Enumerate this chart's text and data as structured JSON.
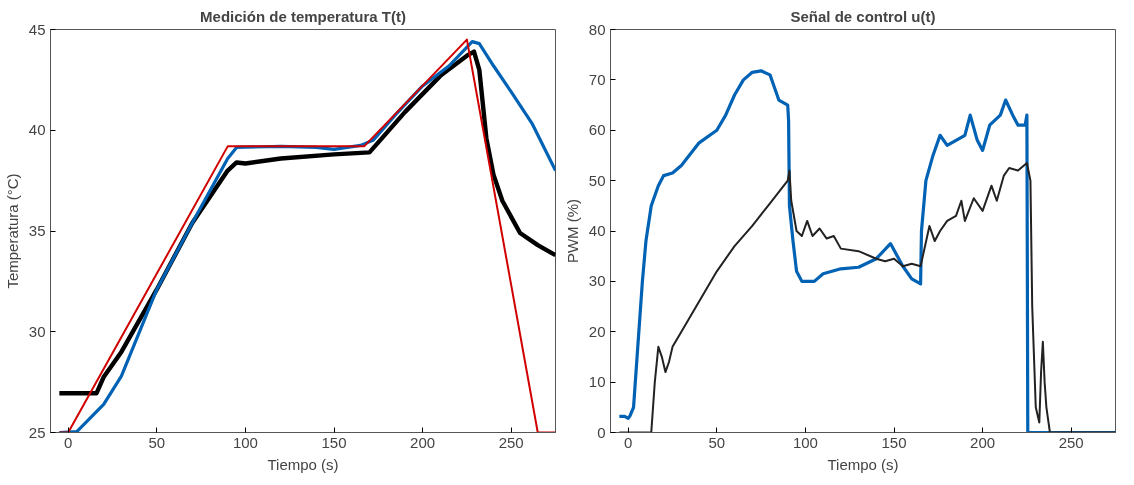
{
  "chart_data": [
    {
      "type": "line",
      "title": "Medición de temperatura T(t)",
      "xlabel": "Tiempo (s)",
      "ylabel": "Temperatura (°C)",
      "xlim": [
        -10,
        275
      ],
      "ylim": [
        25,
        45
      ],
      "xticks": [
        0,
        50,
        100,
        150,
        200,
        250
      ],
      "yticks": [
        25,
        30,
        35,
        40,
        45
      ],
      "grid": false,
      "line_style": "solid",
      "marker": "none",
      "series": [
        {
          "color": "#000000",
          "x": [
            -5,
            16,
            20,
            30,
            50,
            70,
            90,
            95,
            100,
            120,
            150,
            170,
            175,
            190,
            210,
            225,
            229,
            232,
            236,
            240,
            245,
            255,
            265,
            275
          ],
          "values": [
            26.95,
            26.95,
            27.75,
            29.0,
            32.1,
            35.4,
            38.0,
            38.4,
            38.35,
            38.6,
            38.8,
            38.9,
            39.4,
            40.9,
            42.7,
            43.7,
            43.9,
            43.0,
            39.6,
            37.8,
            36.5,
            34.9,
            34.3,
            33.8
          ]
        },
        {
          "color": "#0062b4",
          "x": [
            -5,
            5,
            10,
            20,
            30,
            50,
            70,
            90,
            95,
            120,
            140,
            150,
            165,
            172,
            185,
            200,
            215,
            228,
            232,
            240,
            250,
            262,
            275
          ],
          "values": [
            25.0,
            25.05,
            25.5,
            26.4,
            27.8,
            32.1,
            35.4,
            38.6,
            39.15,
            39.2,
            39.15,
            39.05,
            39.25,
            39.5,
            40.8,
            42.2,
            43.2,
            44.4,
            44.3,
            43.2,
            41.9,
            40.3,
            38.0
          ]
        },
        {
          "color": "#d00000",
          "x": [
            -5,
            0,
            90,
            167,
            225,
            265,
            275
          ],
          "values": [
            25.0,
            25.0,
            39.2,
            39.2,
            44.5,
            25.0,
            25.0
          ]
        }
      ]
    },
    {
      "type": "line",
      "title": "Señal de control u(t)",
      "xlabel": "Tiempo (s)",
      "ylabel": "PWM (%)",
      "xlim": [
        -10,
        275
      ],
      "ylim": [
        0,
        80
      ],
      "xticks": [
        0,
        50,
        100,
        150,
        200,
        250
      ],
      "yticks": [
        0,
        10,
        20,
        30,
        40,
        50,
        60,
        70,
        80
      ],
      "grid": false,
      "line_style": "solid",
      "marker": "none",
      "series": [
        {
          "color": "#0062b4",
          "x": [
            -5,
            -2,
            0,
            1,
            3,
            5,
            8,
            10,
            13,
            17,
            20,
            25,
            30,
            40,
            50,
            55,
            60,
            65,
            70,
            75,
            80,
            85,
            90,
            90.5,
            91,
            93,
            95,
            98,
            105,
            110,
            120,
            130,
            140,
            148,
            155,
            160,
            165,
            165.5,
            168,
            172,
            176,
            180,
            185,
            190,
            193,
            197,
            200,
            204,
            210,
            213,
            217,
            220,
            224,
            225,
            225.5,
            275
          ],
          "values": [
            3.2,
            3.2,
            2.8,
            3.3,
            5,
            15,
            30,
            38,
            45,
            49,
            51,
            51.5,
            53,
            57.5,
            60,
            63,
            67,
            70,
            71.5,
            71.8,
            71,
            66,
            65,
            62,
            45,
            38,
            32,
            30,
            30,
            31.5,
            32.5,
            32.8,
            34.5,
            37.5,
            33,
            30.5,
            29.5,
            40,
            50,
            55,
            59,
            57,
            58,
            59,
            63,
            58,
            56,
            61,
            63,
            66,
            63,
            61,
            61,
            63,
            0,
            0
          ]
        },
        {
          "color": "#222222",
          "x": [
            -5,
            13,
            15,
            17,
            19,
            21,
            23,
            25,
            30,
            40,
            50,
            60,
            70,
            80,
            90,
            91,
            92,
            95,
            98,
            101,
            104,
            108,
            112,
            116,
            120,
            130,
            140,
            145,
            150,
            155,
            160,
            165,
            170,
            173,
            176,
            180,
            185,
            188,
            190,
            195,
            200,
            205,
            208,
            212,
            215,
            220,
            225,
            227,
            228,
            230,
            232,
            233,
            234,
            235,
            236,
            238,
            275
          ],
          "values": [
            0,
            0,
            10,
            17,
            15,
            12,
            14,
            17,
            20,
            26,
            32,
            37,
            41,
            45.5,
            50,
            52,
            46,
            40,
            39,
            42,
            39,
            40.5,
            38.5,
            39,
            36.5,
            36,
            34.5,
            34,
            34.5,
            33,
            33.5,
            33,
            41,
            38,
            40,
            42,
            43,
            46,
            42,
            46.5,
            44,
            49,
            46,
            51,
            52.5,
            52,
            53.5,
            50,
            25,
            5,
            2,
            12,
            18,
            10,
            5,
            0,
            0
          ]
        }
      ]
    }
  ]
}
